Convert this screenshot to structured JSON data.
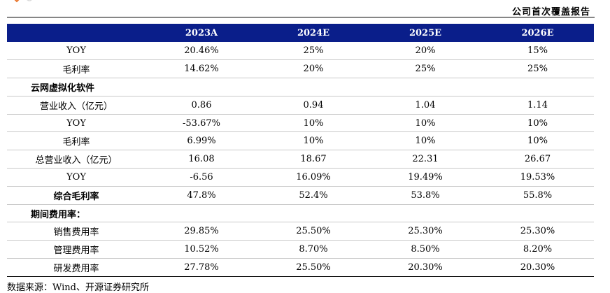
{
  "header": {
    "report_type": "公司首次覆盖报告"
  },
  "table": {
    "columns": [
      "",
      "2023A",
      "2024E",
      "2025E",
      "2026E"
    ],
    "rows": [
      {
        "label": "YOY",
        "values": [
          "20.46%",
          "25%",
          "20%",
          "15%"
        ]
      },
      {
        "label": "毛利率",
        "values": [
          "14.62%",
          "20%",
          "25%",
          "25%"
        ]
      },
      {
        "label": "云网虚拟化软件",
        "values": [
          "",
          "",
          "",
          ""
        ]
      },
      {
        "label": "营业收入（亿元）",
        "values": [
          "0.86",
          "0.94",
          "1.04",
          "1.14"
        ]
      },
      {
        "label": "YOY",
        "values": [
          "-53.67%",
          "10%",
          "10%",
          "10%"
        ]
      },
      {
        "label": "毛利率",
        "values": [
          "6.99%",
          "10%",
          "10%",
          "10%"
        ]
      },
      {
        "label": "总营业收入（亿元）",
        "values": [
          "16.08",
          "18.67",
          "22.31",
          "26.67"
        ]
      },
      {
        "label": "YOY",
        "values": [
          "-6.56",
          "16.09%",
          "19.49%",
          "19.53%"
        ]
      },
      {
        "label": "综合毛利率",
        "values": [
          "47.8%",
          "52.4%",
          "53.8%",
          "55.8%"
        ]
      },
      {
        "label": "期间费用率：",
        "values": [
          "",
          "",
          "",
          ""
        ]
      },
      {
        "label": "销售费用率",
        "values": [
          "29.85%",
          "25.50%",
          "25.30%",
          "25.30%"
        ]
      },
      {
        "label": "管理费用率",
        "values": [
          "10.52%",
          "8.70%",
          "8.50%",
          "8.20%"
        ]
      },
      {
        "label": "研发费用率",
        "values": [
          "27.78%",
          "25.50%",
          "20.30%",
          "20.30%"
        ]
      }
    ]
  },
  "footer": {
    "source": "数据来源：Wind、开源证券研究所"
  },
  "colors": {
    "header_bg": "#0a1e8a",
    "logo_orange": "#e8742a"
  }
}
